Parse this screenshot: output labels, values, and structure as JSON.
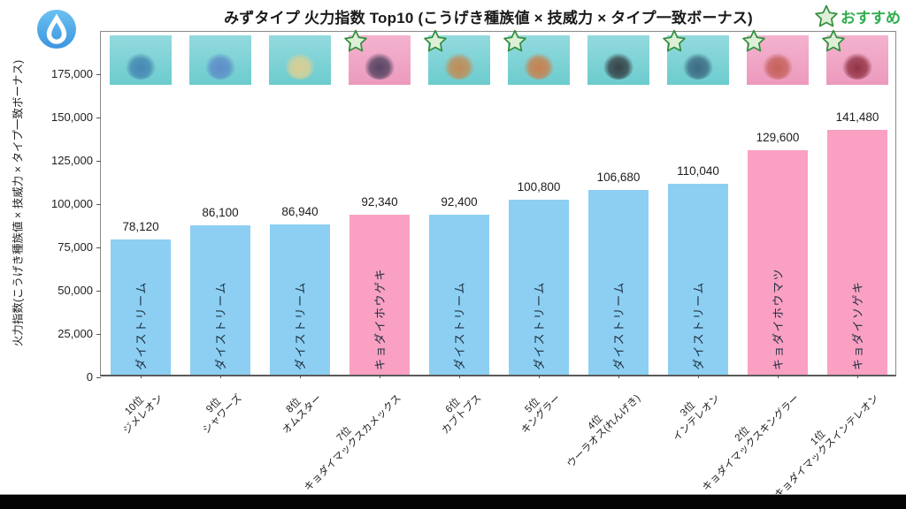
{
  "header": {
    "title": "みずタイプ 火力指数 Top10 (こうげき種族値 × 技威力 × タイプ一致ボーナス)",
    "legend_label": "おすすめ",
    "type_icon": "water-drop-icon"
  },
  "colors": {
    "bar_blue": "#8CCFF3",
    "bar_pink": "#F9A0C3",
    "thumb_cyan_top": "#93dade",
    "thumb_cyan_bottom": "#6cccce",
    "thumb_pink_top": "#f4b3cf",
    "thumb_pink_bottom": "#ec9abd",
    "legend_green": "#2fae4d",
    "star_fill": "#ddefd6",
    "star_stroke": "#338f3e",
    "axis": "#555555",
    "water_badge_blue": "#45a1e6"
  },
  "chart_data": {
    "type": "bar",
    "title": "みずタイプ 火力指数 Top10 (こうげき種族値 × 技威力 × タイプ一致ボーナス)",
    "ylabel": "火力指数(こうげき種族値 × 技威力 × タイプ一致ボーナス)",
    "xlabel": "",
    "ylim": [
      0,
      199500
    ],
    "yticks": [
      0,
      25000,
      50000,
      75000,
      100000,
      125000,
      150000,
      175000
    ],
    "ytick_labels": [
      "0",
      "25,000",
      "50,000",
      "75,000",
      "100,000",
      "125,000",
      "150,000",
      "175,000"
    ],
    "grid": false,
    "legend_position": "top-right",
    "legend_star_label": "おすすめ",
    "bars": [
      {
        "rank": "10位",
        "name": "ジメレオン",
        "value": 78120,
        "value_label": "78,120",
        "move": "ダイストリーム",
        "color": "blue",
        "starred": false,
        "sprite_color": "#3f7fae"
      },
      {
        "rank": "9位",
        "name": "シャワーズ",
        "value": 86100,
        "value_label": "86,100",
        "move": "ダイストリーム",
        "color": "blue",
        "starred": false,
        "sprite_color": "#5a86c8"
      },
      {
        "rank": "8位",
        "name": "オムスター",
        "value": 86940,
        "value_label": "86,940",
        "move": "ダイストリーム",
        "color": "blue",
        "starred": false,
        "sprite_color": "#e3d08e"
      },
      {
        "rank": "7位",
        "name": "キョダイマックスカメックス",
        "value": 92340,
        "value_label": "92,340",
        "move": "キョダイホウゲキ",
        "color": "pink",
        "starred": true,
        "sprite_color": "#463a58"
      },
      {
        "rank": "6位",
        "name": "カブトプス",
        "value": 92400,
        "value_label": "92,400",
        "move": "ダイストリーム",
        "color": "blue",
        "starred": true,
        "sprite_color": "#c8854a"
      },
      {
        "rank": "5位",
        "name": "キングラー",
        "value": 100800,
        "value_label": "100,800",
        "move": "ダイストリーム",
        "color": "blue",
        "starred": true,
        "sprite_color": "#d07840"
      },
      {
        "rank": "4位",
        "name": "ウーラオス(れんげき)",
        "value": 106680,
        "value_label": "106,680",
        "move": "ダイストリーム",
        "color": "blue",
        "starred": false,
        "sprite_color": "#2e3338"
      },
      {
        "rank": "3位",
        "name": "インテレオン",
        "value": 110040,
        "value_label": "110,040",
        "move": "ダイストリーム",
        "color": "blue",
        "starred": true,
        "sprite_color": "#35607a"
      },
      {
        "rank": "2位",
        "name": "キョダイマックスキングラー",
        "value": 129600,
        "value_label": "129,600",
        "move": "キョダイホウマツ",
        "color": "pink",
        "starred": true,
        "sprite_color": "#c05a50"
      },
      {
        "rank": "1位",
        "name": "キョダイマックスインテレオン",
        "value": 141480,
        "value_label": "141,480",
        "move": "キョダイソゲキ",
        "color": "pink",
        "starred": true,
        "sprite_color": "#8a2838"
      }
    ]
  }
}
